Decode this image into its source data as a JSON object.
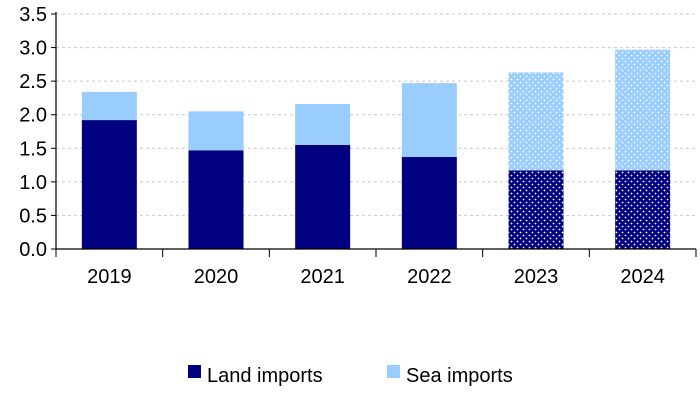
{
  "chart_data": {
    "type": "bar",
    "stacked": true,
    "categories": [
      "2019",
      "2020",
      "2021",
      "2022",
      "2023",
      "2024"
    ],
    "series": [
      {
        "name": "Land imports",
        "color": "#000080",
        "values": [
          1.92,
          1.47,
          1.55,
          1.37,
          1.17,
          1.17
        ]
      },
      {
        "name": "Sea imports",
        "color": "#99ccff",
        "values": [
          0.42,
          0.58,
          0.61,
          1.1,
          1.46,
          1.8
        ]
      }
    ],
    "dotted_categories": [
      "2023",
      "2024"
    ],
    "ylim": [
      0,
      3.5
    ],
    "yticks": [
      "0.0",
      "0.5",
      "1.0",
      "1.5",
      "2.0",
      "2.5",
      "3.0",
      "3.5"
    ],
    "grid": true,
    "legend_position": "bottom",
    "title": "",
    "xlabel": "",
    "ylabel": ""
  }
}
